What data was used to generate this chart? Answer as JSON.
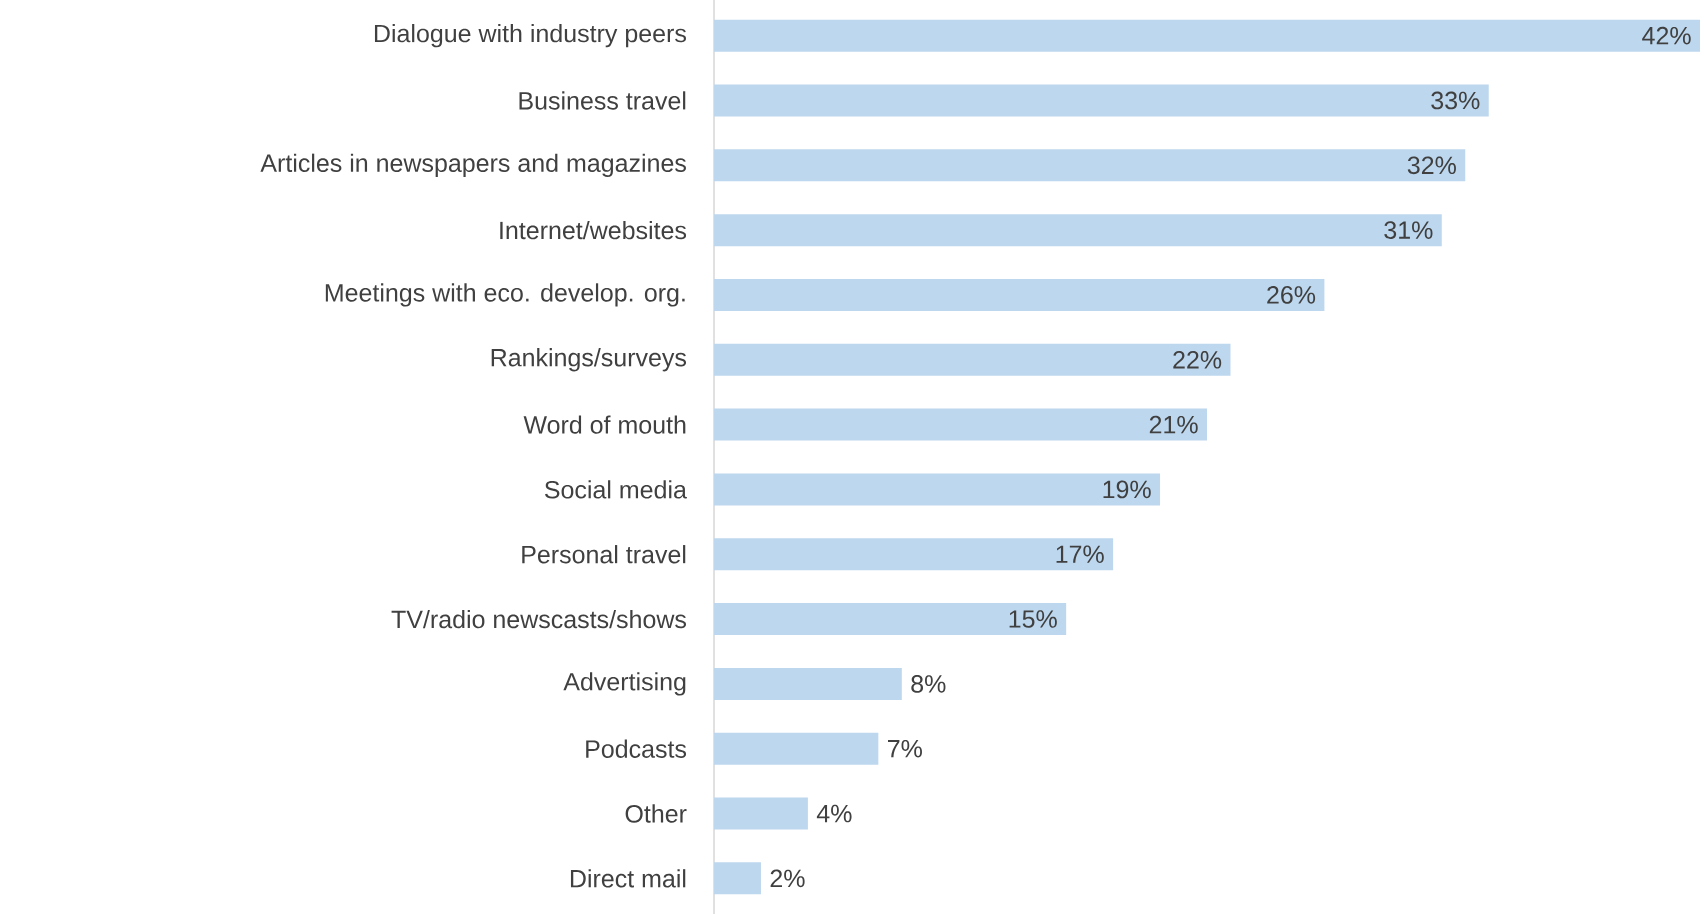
{
  "chart_data": {
    "type": "bar",
    "orientation": "horizontal",
    "color": "#bdd7ee",
    "categories": [
      "Dialogue with industry peers",
      "Business travel",
      "Articles in newspapers and magazines",
      "Internet/websites",
      "Meetings with eco. develop. org.",
      "Rankings/surveys",
      "Word of mouth",
      "Social media",
      "Personal travel",
      "TV/radio newscasts/shows",
      "Advertising",
      "Podcasts",
      "Other",
      "Direct mail"
    ],
    "values": [
      42,
      33,
      32,
      31,
      26,
      22,
      21,
      19,
      17,
      15,
      8,
      7,
      4,
      2
    ],
    "value_labels": [
      "42%",
      "33%",
      "32%",
      "31%",
      "26%",
      "22%",
      "21%",
      "19%",
      "17%",
      "15%",
      "8%",
      "7%",
      "4%",
      "2%"
    ]
  }
}
